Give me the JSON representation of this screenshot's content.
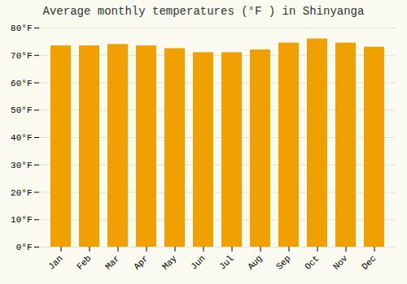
{
  "chart_data": {
    "type": "bar",
    "title": "Average monthly temperatures (°F ) in Shinyanga",
    "categories": [
      "Jan",
      "Feb",
      "Mar",
      "Apr",
      "May",
      "Jun",
      "Jul",
      "Aug",
      "Sep",
      "Oct",
      "Nov",
      "Dec"
    ],
    "values": [
      73.5,
      73.5,
      74.0,
      73.5,
      72.5,
      71.0,
      71.0,
      72.0,
      74.5,
      76.0,
      74.5,
      73.0
    ],
    "color": "#F0A000",
    "ylim": [
      0,
      80
    ],
    "yticks": [
      {
        "value": 0,
        "label": "0°F"
      },
      {
        "value": 10,
        "label": "10°F"
      },
      {
        "value": 20,
        "label": "20°F"
      },
      {
        "value": 30,
        "label": "30°F"
      },
      {
        "value": 40,
        "label": "40°F"
      },
      {
        "value": 50,
        "label": "50°F"
      },
      {
        "value": 60,
        "label": "60°F"
      },
      {
        "value": 70,
        "label": "70°F"
      },
      {
        "value": 80,
        "label": "80°F"
      }
    ],
    "grid": true
  }
}
